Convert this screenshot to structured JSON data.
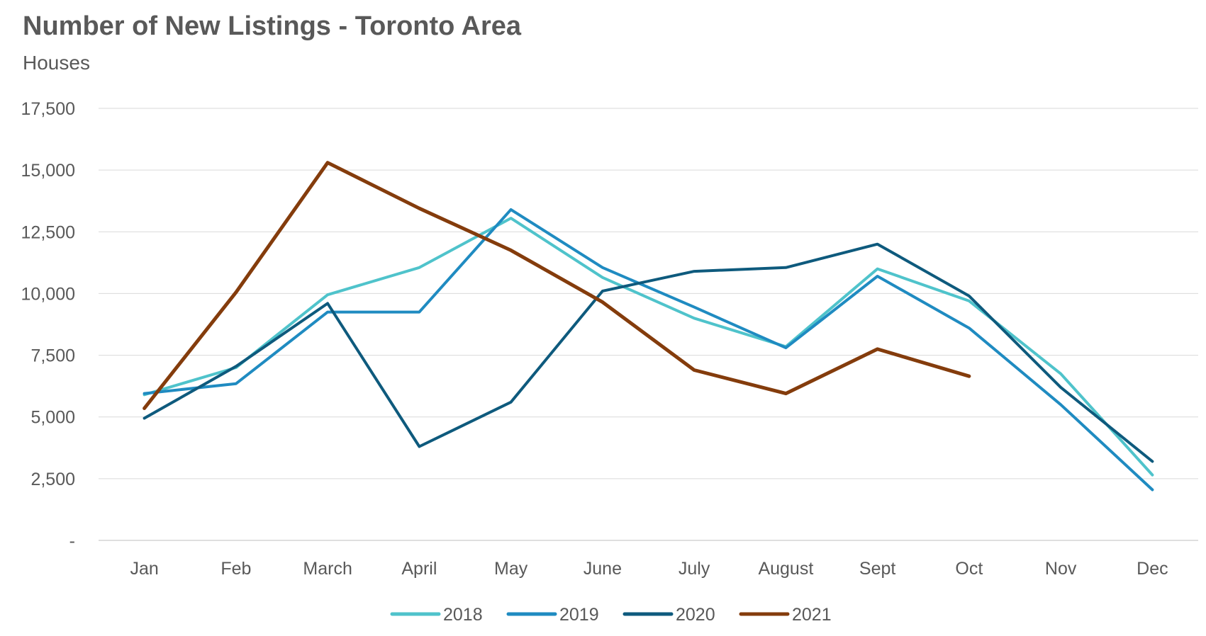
{
  "chart_data": {
    "type": "line",
    "title": "Number of New Listings - Toronto Area",
    "subtitle": "Houses",
    "xlabel": "",
    "ylabel": "",
    "categories": [
      "Jan",
      "Feb",
      "March",
      "April",
      "May",
      "June",
      "July",
      "August",
      "Sept",
      "Oct",
      "Nov",
      "Dec"
    ],
    "ylim": [
      0,
      17500
    ],
    "yticks": [
      0,
      2500,
      5000,
      7500,
      10000,
      12500,
      15000,
      17500
    ],
    "ytick_labels": [
      "-",
      "2,500",
      "5,000",
      "7,500",
      "10,000",
      "12,500",
      "15,000",
      "17,500"
    ],
    "grid": true,
    "legend_position": "bottom",
    "series": [
      {
        "name": "2018",
        "color": "#4FC3CB",
        "values": [
          5900,
          7000,
          9950,
          11050,
          13050,
          10650,
          9000,
          7850,
          11000,
          9700,
          6750,
          2650
        ]
      },
      {
        "name": "2019",
        "color": "#1F8BC1",
        "values": [
          5950,
          6350,
          9250,
          9250,
          13400,
          11050,
          9450,
          7800,
          10700,
          8600,
          5500,
          2050
        ]
      },
      {
        "name": "2020",
        "color": "#0E5A7D",
        "values": [
          4950,
          7050,
          9600,
          3800,
          5600,
          10100,
          10900,
          11050,
          12000,
          9900,
          6200,
          3200
        ]
      },
      {
        "name": "2021",
        "color": "#843C0C",
        "values": [
          5350,
          10050,
          15300,
          13450,
          11750,
          9650,
          6900,
          5950,
          7750,
          6650,
          null,
          null
        ]
      }
    ]
  }
}
